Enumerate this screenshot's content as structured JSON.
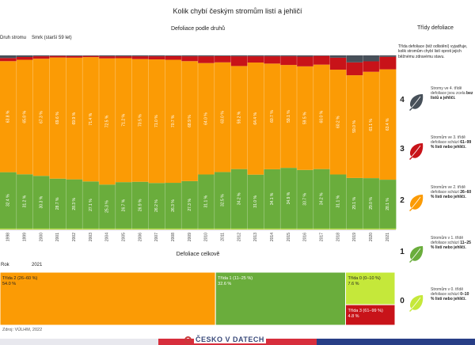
{
  "title": "Kolik chybí českým stromům listí a jehličí",
  "subtitle_species": "Defoliace podle druhů",
  "subtitle_total": "Defoliace celkově",
  "legend_title": "Třídy defoliace",
  "species_label": "Druh stromu",
  "species": "Smrk (starší 59 let)",
  "year_label": "Rok",
  "total_year": "2021",
  "legend_note": "Třída defoliace (též odlistění) vyjadřuje, kolik stromům chybí listí oproti jejich běžnému zdravému stavu.",
  "source": "Zdroj: VÚLHM, 2022",
  "brand": "ČESKO V DATECH",
  "colors": {
    "c0": "#c5e83a",
    "c1": "#6aad3c",
    "c2": "#fb9b05",
    "c3": "#c81319",
    "c4": "#475059",
    "flag_white": "#ffffff",
    "flag_red": "#d72e3c",
    "flag_blue": "#283e86"
  },
  "legend": [
    {
      "num": "4",
      "text_a": "Stromy ve 4. třídě defoliace jsou zcela ",
      "text_b": "bez listů a jehličí.",
      "icon": "leaf-icon"
    },
    {
      "num": "3",
      "text_a": "Stromům ve 3. třídě defoliace schází ",
      "text_b": "61–99 % listí nebo jehličí.",
      "icon": "leaf-icon"
    },
    {
      "num": "2",
      "text_a": "Stromům ve 2. třídě defoliace schází ",
      "text_b": "26–60 % listí nebo jehličí.",
      "icon": "leaf-icon"
    },
    {
      "num": "1",
      "text_a": "Stromům v 1. třídě defoliace schází ",
      "text_b": "11–25 % listí nebo jehličí.",
      "icon": "leaf-icon"
    },
    {
      "num": "0",
      "text_a": "Stromům v 0. třídě defoliace schází ",
      "text_b": "0–10 % listí nebo jehličí.",
      "icon": "leaf-icon"
    }
  ],
  "chart_data": [
    {
      "type": "stacked-bar",
      "title": "Defoliace podle druhů",
      "xlabel": "Rok",
      "categories": [
        "1998",
        "1999",
        "2000",
        "2001",
        "2002",
        "2003",
        "2004",
        "2005",
        "2006",
        "2007",
        "2008",
        "2009",
        "2010",
        "2011",
        "2012",
        "2013",
        "2014",
        "2015",
        "2016",
        "2017",
        "2018",
        "2019",
        "2020",
        "2021"
      ],
      "ylim": [
        0,
        100
      ],
      "series": [
        {
          "name": "Třída 0 (0–10 %)",
          "values": [
            0.5,
            0.5,
            0.5,
            0.5,
            0.5,
            0.5,
            0.5,
            0.5,
            0.5,
            0.5,
            0.5,
            0.5,
            0.5,
            0.5,
            0.5,
            0.5,
            0.5,
            0.5,
            0.5,
            0.5,
            0.5,
            0.5,
            0.5,
            0.5
          ]
        },
        {
          "name": "Třída 1 (11–25 %)",
          "values": [
            32.4,
            31.2,
            30.3,
            28.7,
            28.3,
            27.1,
            25.3,
            26.7,
            26.9,
            26.2,
            26.3,
            27.3,
            31.1,
            32.5,
            34.2,
            31.0,
            34.1,
            34.9,
            33.7,
            34.2,
            31.1,
            29.1,
            29.0,
            28.1
          ]
        },
        {
          "name": "Třída 2 (26–60 %)",
          "values": [
            63.8,
            65.8,
            67.3,
            69.6,
            69.9,
            71.4,
            72.5,
            71.2,
            70.5,
            71.0,
            70.7,
            68.9,
            64.0,
            63.0,
            59.2,
            64.4,
            60.7,
            59.1,
            59.5,
            60.0,
            60.2,
            59.0,
            61.1,
            63.4
          ]
        },
        {
          "name": "Třída 3 (61–99 %)",
          "values": [
            1.8,
            1.6,
            1.4,
            0.9,
            0.9,
            0.7,
            1.2,
            1.1,
            1.6,
            1.8,
            2.1,
            2.8,
            3.9,
            3.6,
            5.6,
            3.6,
            4.2,
            5.0,
            5.6,
            5.0,
            6.9,
            7.4,
            6.0,
            7.2
          ]
        },
        {
          "name": "Třída 4 (100 %)",
          "values": [
            1.5,
            0.9,
            0.5,
            0.3,
            0.4,
            0.3,
            0.5,
            0.5,
            0.5,
            0.5,
            0.4,
            0.5,
            0.5,
            0.4,
            0.5,
            0.5,
            0.5,
            0.5,
            0.7,
            0.3,
            1.3,
            4.0,
            3.4,
            0.8
          ]
        }
      ],
      "labeled_series": [
        "Třída 1 (11–25 %)",
        "Třída 2 (26–60 %)"
      ],
      "label_suffix": " %"
    },
    {
      "type": "treemap",
      "title": "Defoliace celkově",
      "year": "2021",
      "items": [
        {
          "name": "Třída 2 (26–60 %)",
          "value": 54.0,
          "label": "54.0 %"
        },
        {
          "name": "Třída 1 (11–25 %)",
          "value": 32.6,
          "label": "32.6 %"
        },
        {
          "name": "Třída 0 (0–10 %)",
          "value": 7.6,
          "label": "7.6 %"
        },
        {
          "name": "Třída 3 (61–99 %)",
          "value": 4.8,
          "label": "4.8 %"
        }
      ]
    }
  ]
}
